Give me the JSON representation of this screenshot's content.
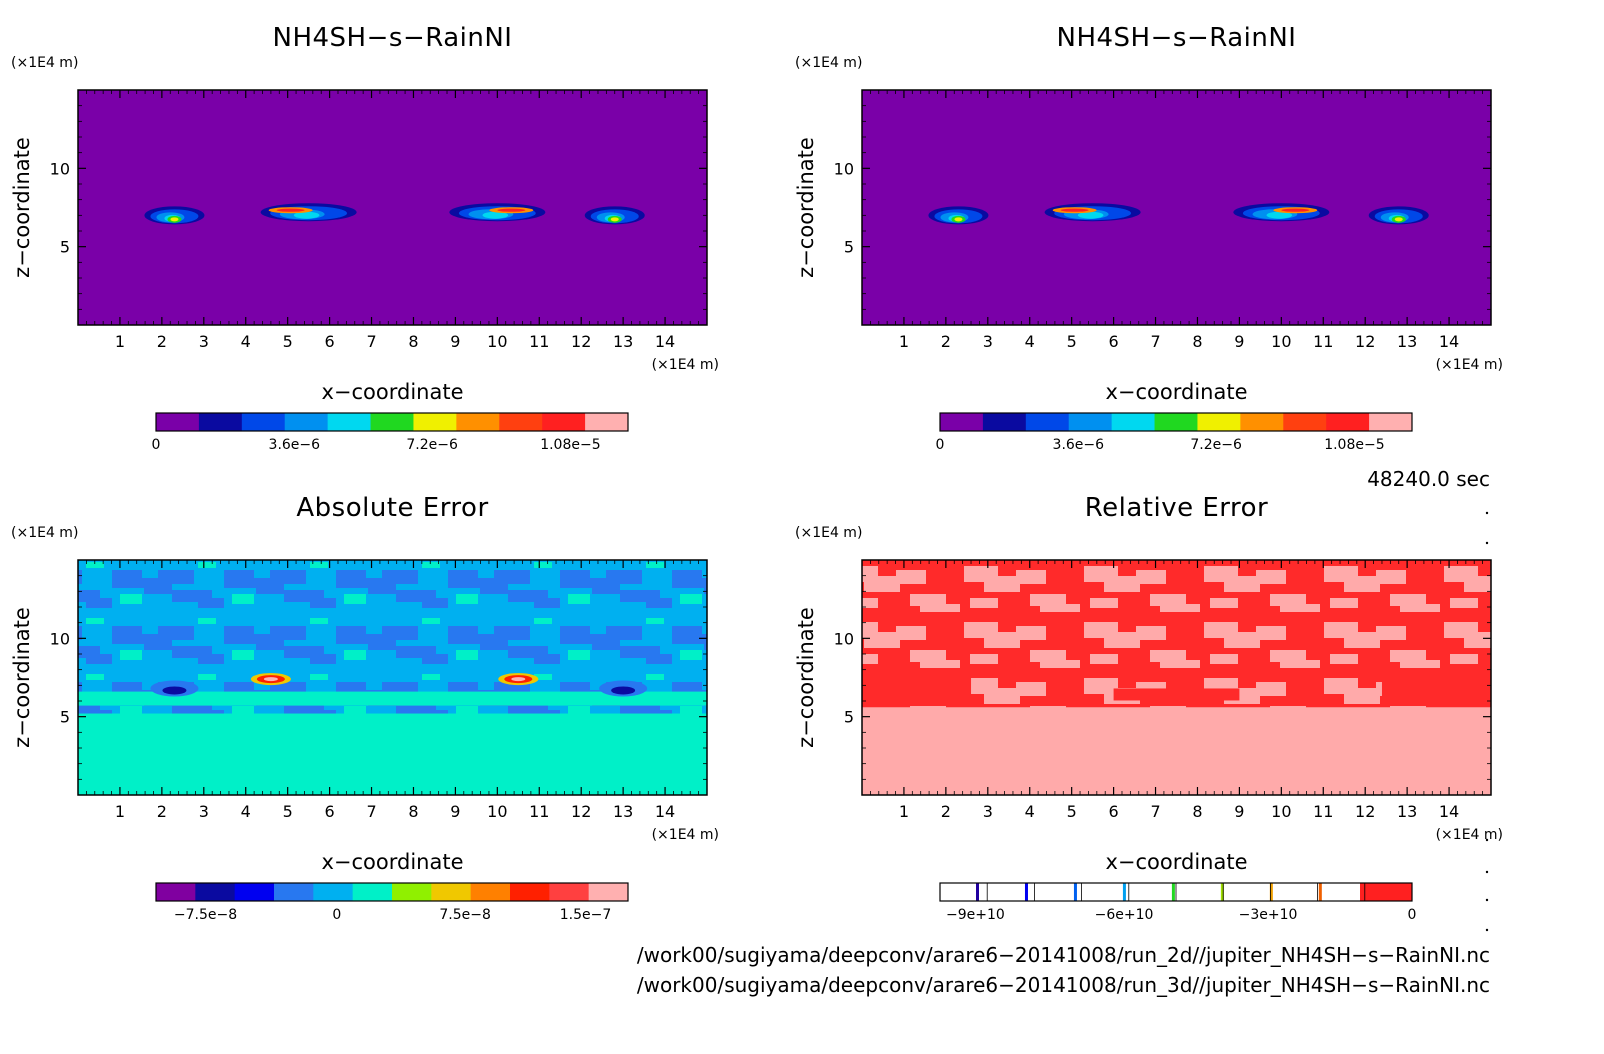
{
  "chart_data": [
    {
      "type": "heatmap",
      "title": "NH4SH−s−RainNI",
      "xlabel": "x−coordinate",
      "ylabel": "z−coordinate",
      "x_unit": "(×1E4 m)",
      "y_unit": "(×1E4 m)",
      "xlim": [
        0,
        15
      ],
      "ylim": [
        0,
        15
      ],
      "x_ticks": [
        "1",
        "2",
        "3",
        "4",
        "5",
        "6",
        "7",
        "8",
        "9",
        "10",
        "11",
        "12",
        "13",
        "14"
      ],
      "y_ticks": [
        "5",
        "10"
      ],
      "background_color": "#7a00a8",
      "features": [
        {
          "x": 2.3,
          "z": 7.0,
          "peak": 8.5e-06
        },
        {
          "x": 5.5,
          "z": 7.2,
          "peak": 1e-05
        },
        {
          "x": 10.0,
          "z": 7.2,
          "peak": 1e-05
        },
        {
          "x": 12.8,
          "z": 7.0,
          "peak": 8.5e-06
        }
      ],
      "colorbar": {
        "tick_labels": [
          "0",
          "3.6e−6",
          "7.2e−6",
          "1.08e−5"
        ],
        "colors": [
          "#7a00a8",
          "#0a0aa0",
          "#0048e8",
          "#0090f0",
          "#00d8f0",
          "#20d820",
          "#f0f000",
          "#ff9000",
          "#ff4010",
          "#ff2020",
          "#ffb0b0"
        ]
      }
    },
    {
      "type": "heatmap",
      "title": "NH4SH−s−RainNI",
      "xlabel": "x−coordinate",
      "ylabel": "z−coordinate",
      "x_unit": "(×1E4 m)",
      "y_unit": "(×1E4 m)",
      "xlim": [
        0,
        15
      ],
      "ylim": [
        0,
        15
      ],
      "x_ticks": [
        "1",
        "2",
        "3",
        "4",
        "5",
        "6",
        "7",
        "8",
        "9",
        "10",
        "11",
        "12",
        "13",
        "14"
      ],
      "y_ticks": [
        "5",
        "10"
      ],
      "background_color": "#7a00a8",
      "features": [
        {
          "x": 2.3,
          "z": 7.0,
          "peak": 8.5e-06
        },
        {
          "x": 5.5,
          "z": 7.2,
          "peak": 1e-05
        },
        {
          "x": 10.0,
          "z": 7.2,
          "peak": 1e-05
        },
        {
          "x": 12.8,
          "z": 7.0,
          "peak": 8.5e-06
        }
      ],
      "colorbar": {
        "tick_labels": [
          "0",
          "3.6e−6",
          "7.2e−6",
          "1.08e−5"
        ],
        "colors": [
          "#7a00a8",
          "#0a0aa0",
          "#0048e8",
          "#0090f0",
          "#00d8f0",
          "#20d820",
          "#f0f000",
          "#ff9000",
          "#ff4010",
          "#ff2020",
          "#ffb0b0"
        ]
      }
    },
    {
      "type": "heatmap",
      "title": "Absolute Error",
      "xlabel": "x−coordinate",
      "ylabel": "z−coordinate",
      "x_unit": "(×1E4 m)",
      "y_unit": "(×1E4 m)",
      "xlim": [
        0,
        15
      ],
      "ylim": [
        0,
        15
      ],
      "x_ticks": [
        "1",
        "2",
        "3",
        "4",
        "5",
        "6",
        "7",
        "8",
        "9",
        "10",
        "11",
        "12",
        "13",
        "14"
      ],
      "y_ticks": [
        "5",
        "10"
      ],
      "background_color": "#00f0c8",
      "colorbar": {
        "tick_labels": [
          "−7.5e−8",
          "0",
          "7.5e−8",
          "1.5e−7"
        ],
        "colors": [
          "#8000a0",
          "#0a0aa0",
          "#0000f0",
          "#2878f0",
          "#00b0f0",
          "#00f0c8",
          "#90f000",
          "#f0c800",
          "#ff8000",
          "#ff2000",
          "#ff4040",
          "#ffb0b0"
        ]
      }
    },
    {
      "type": "heatmap",
      "title": "Relative Error",
      "xlabel": "x−coordinate",
      "ylabel": "z−coordinate",
      "x_unit": "(×1E4 m)",
      "y_unit": "(×1E4 m)",
      "xlim": [
        0,
        15
      ],
      "ylim": [
        0,
        15
      ],
      "x_ticks": [
        "1",
        "2",
        "3",
        "4",
        "5",
        "6",
        "7",
        "8",
        "9",
        "10",
        "11",
        "12",
        "13",
        "14"
      ],
      "y_ticks": [
        "5",
        "10"
      ],
      "background_color": "#ffaaaa",
      "colorbar": {
        "tick_labels": [
          "−9e+10",
          "−6e+10",
          "−3e+10",
          "0"
        ],
        "colors": [
          "#2000a0",
          "#0000f0",
          "#0060f0",
          "#00a0f0",
          "#20d820",
          "#a0e000",
          "#f0a000",
          "#f06000",
          "#ff2020"
        ]
      }
    }
  ],
  "annotations": {
    "time_label": "48240.0 sec",
    "file_line_1": "/work00/sugiyama/deepconv/arare6−20141008/run_2d//jupiter_NH4SH−s−RainNI.nc",
    "file_line_2": "/work00/sugiyama/deepconv/arare6−20141008/run_3d//jupiter_NH4SH−s−RainNI.nc"
  }
}
